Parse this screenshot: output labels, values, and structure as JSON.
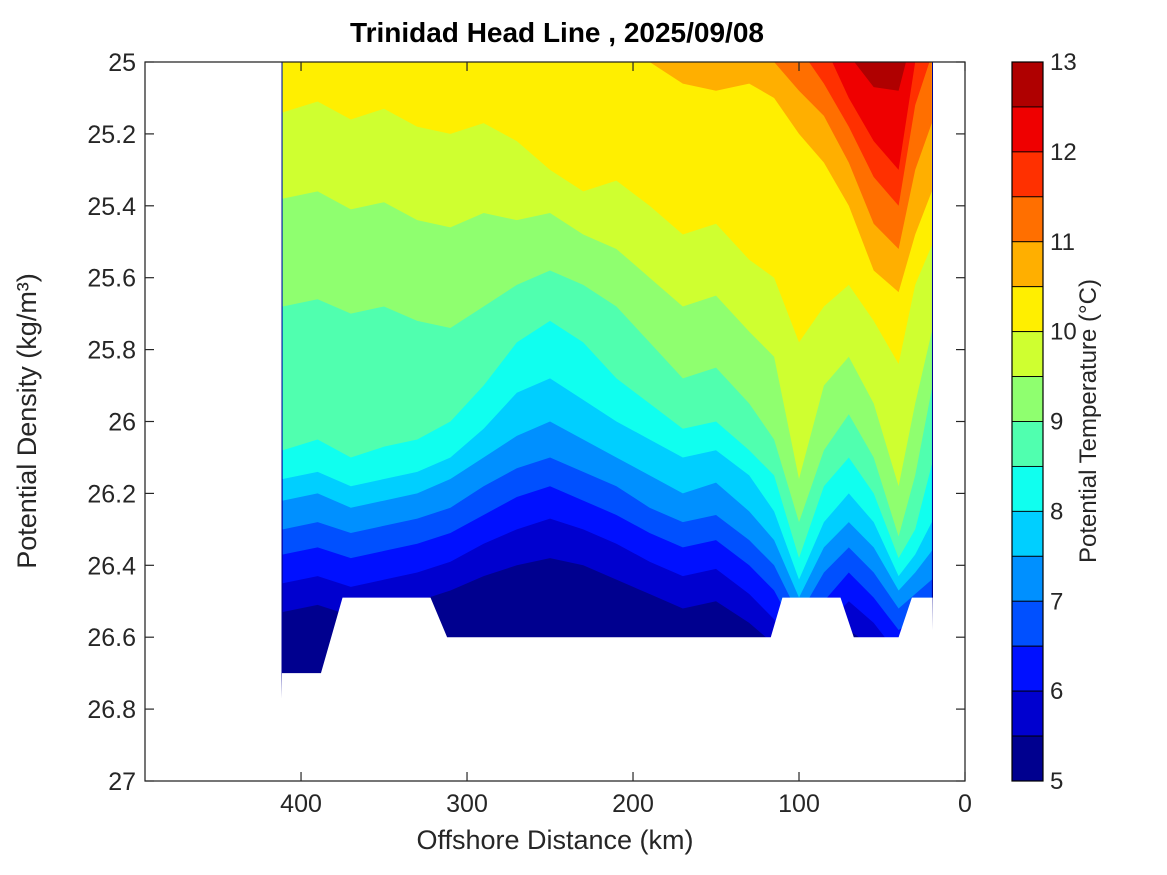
{
  "title": "Trinidad Head Line , 2025/09/08",
  "chart_data": {
    "type": "heatmap",
    "subtype": "filled-contour-section",
    "title": "Trinidad Head Line , 2025/09/08",
    "xlabel": "Offshore Distance (km)",
    "ylabel": "Potential Density (kg/m³)",
    "colorbar_label": "Potential Temperature (°C)",
    "x_axis_reversed": true,
    "y_axis_reversed": true,
    "xlim": [
      494,
      0
    ],
    "ylim": [
      25,
      27
    ],
    "x_ticks": [
      400,
      300,
      200,
      100,
      0
    ],
    "y_ticks": [
      25,
      25.2,
      25.4,
      25.6,
      25.8,
      26,
      26.2,
      26.4,
      26.6,
      26.8,
      27
    ],
    "grid": false,
    "legend_position": "colorbar-right",
    "temperature_levels": [
      5,
      5.5,
      6,
      6.5,
      7,
      7.5,
      8,
      8.5,
      9,
      9.5,
      10,
      10.5,
      11,
      11.5,
      12,
      12.5,
      13
    ],
    "level_colors": [
      "#00008F",
      "#0000CF",
      "#0010FF",
      "#0050FF",
      "#0090FF",
      "#00CFFF",
      "#10FFEF",
      "#50FFAF",
      "#8FFF6F",
      "#CFFF30",
      "#FFEF00",
      "#FFAF00",
      "#FF6F00",
      "#FF3000",
      "#EF0000",
      "#AF0000"
    ],
    "colorbar_ticks": [
      5,
      6,
      7,
      8,
      9,
      10,
      11,
      12,
      13
    ],
    "data_extent": {
      "distance_km": [
        411,
        20
      ],
      "density_top": 25.0,
      "density_deepest": 26.7
    },
    "distance_grid_km": [
      411,
      390,
      370,
      350,
      330,
      310,
      290,
      270,
      250,
      230,
      210,
      190,
      170,
      150,
      130,
      115,
      100,
      85,
      70,
      55,
      40,
      30,
      20
    ],
    "isotherm_density_note": "density (kg/m3) of each potential-temperature isoline along distance_grid_km; 24.9 = outcrops above surface (clipped at 25)",
    "isotherms": [
      {
        "temp": 5.5,
        "density": [
          26.53,
          26.51,
          26.54,
          26.52,
          26.5,
          26.47,
          26.43,
          26.4,
          26.38,
          26.4,
          26.44,
          26.48,
          26.52,
          26.5,
          26.56,
          26.62,
          26.73,
          26.64,
          26.58,
          26.63,
          26.72,
          26.7,
          26.68
        ]
      },
      {
        "temp": 6.0,
        "density": [
          26.45,
          26.43,
          26.46,
          26.44,
          26.42,
          26.39,
          26.34,
          26.3,
          26.27,
          26.3,
          26.34,
          26.39,
          26.43,
          26.41,
          26.48,
          26.55,
          26.67,
          26.57,
          26.5,
          26.56,
          26.65,
          26.62,
          26.6
        ]
      },
      {
        "temp": 6.5,
        "density": [
          26.37,
          26.35,
          26.38,
          26.36,
          26.34,
          26.31,
          26.26,
          26.21,
          26.18,
          26.22,
          26.26,
          26.31,
          26.35,
          26.33,
          26.4,
          26.47,
          26.6,
          26.5,
          26.42,
          26.49,
          26.58,
          26.55,
          26.52
        ]
      },
      {
        "temp": 7.0,
        "density": [
          26.3,
          26.28,
          26.31,
          26.29,
          26.27,
          26.24,
          26.18,
          26.13,
          26.1,
          26.14,
          26.18,
          26.24,
          26.28,
          26.26,
          26.33,
          26.4,
          26.54,
          26.42,
          26.35,
          26.42,
          26.52,
          26.48,
          26.44
        ]
      },
      {
        "temp": 7.5,
        "density": [
          26.22,
          26.2,
          26.24,
          26.22,
          26.2,
          26.16,
          26.1,
          26.04,
          26.0,
          26.05,
          26.1,
          26.15,
          26.2,
          26.17,
          26.25,
          26.33,
          26.49,
          26.35,
          26.28,
          26.35,
          26.47,
          26.42,
          26.36
        ]
      },
      {
        "temp": 8.0,
        "density": [
          26.16,
          26.14,
          26.18,
          26.16,
          26.14,
          26.1,
          26.02,
          25.92,
          25.88,
          25.94,
          26.0,
          26.05,
          26.1,
          26.08,
          26.15,
          26.25,
          26.44,
          26.28,
          26.2,
          26.28,
          26.43,
          26.37,
          26.28
        ]
      },
      {
        "temp": 8.5,
        "density": [
          26.08,
          26.05,
          26.1,
          26.07,
          26.05,
          26.0,
          25.9,
          25.78,
          25.72,
          25.78,
          25.88,
          25.95,
          26.02,
          26.0,
          26.08,
          26.15,
          26.38,
          26.18,
          26.1,
          26.2,
          26.38,
          26.3,
          26.12
        ]
      },
      {
        "temp": 9.0,
        "density": [
          25.68,
          25.66,
          25.7,
          25.68,
          25.72,
          25.74,
          25.68,
          25.62,
          25.58,
          25.62,
          25.68,
          25.78,
          25.88,
          25.85,
          25.95,
          26.05,
          26.28,
          26.08,
          25.98,
          26.1,
          26.32,
          26.15,
          25.91
        ]
      },
      {
        "temp": 9.5,
        "density": [
          25.38,
          25.36,
          25.41,
          25.39,
          25.44,
          25.46,
          25.42,
          25.44,
          25.42,
          25.48,
          25.52,
          25.6,
          25.68,
          25.65,
          25.75,
          25.82,
          26.16,
          25.9,
          25.82,
          25.95,
          26.18,
          25.95,
          25.75
        ]
      },
      {
        "temp": 10.0,
        "density": [
          25.14,
          25.11,
          25.16,
          25.13,
          25.18,
          25.2,
          25.17,
          25.22,
          25.3,
          25.36,
          25.33,
          25.4,
          25.48,
          25.45,
          25.55,
          25.6,
          25.78,
          25.68,
          25.62,
          25.72,
          25.84,
          25.62,
          25.51
        ]
      },
      {
        "temp": 10.5,
        "density": [
          24.9,
          24.9,
          24.9,
          24.9,
          24.9,
          24.9,
          24.9,
          24.9,
          24.9,
          24.9,
          24.92,
          25.0,
          25.06,
          25.08,
          25.06,
          25.1,
          25.2,
          25.28,
          25.4,
          25.58,
          25.64,
          25.48,
          25.36
        ]
      },
      {
        "temp": 11.0,
        "density": [
          24.9,
          24.9,
          24.9,
          24.9,
          24.9,
          24.9,
          24.9,
          24.9,
          24.9,
          24.9,
          24.9,
          24.92,
          24.96,
          24.98,
          24.96,
          25.0,
          25.08,
          25.15,
          25.28,
          25.45,
          25.52,
          25.3,
          25.17
        ]
      },
      {
        "temp": 11.5,
        "density": [
          24.9,
          24.9,
          24.9,
          24.9,
          24.9,
          24.9,
          24.9,
          24.9,
          24.9,
          24.9,
          24.9,
          24.9,
          24.9,
          24.9,
          24.9,
          24.9,
          24.96,
          25.06,
          25.18,
          25.32,
          25.4,
          25.12,
          24.98
        ]
      },
      {
        "temp": 12.0,
        "density": [
          24.9,
          24.9,
          24.9,
          24.9,
          24.9,
          24.9,
          24.9,
          24.9,
          24.9,
          24.9,
          24.9,
          24.9,
          24.9,
          24.9,
          24.9,
          24.9,
          24.9,
          24.95,
          25.1,
          25.22,
          25.3,
          25.0,
          24.92
        ]
      },
      {
        "temp": 12.5,
        "density": [
          24.9,
          24.9,
          24.9,
          24.9,
          24.9,
          24.9,
          24.9,
          24.9,
          24.9,
          24.9,
          24.9,
          24.9,
          24.9,
          24.9,
          24.9,
          24.9,
          24.9,
          24.9,
          24.98,
          25.07,
          25.08,
          24.9,
          24.9
        ]
      }
    ],
    "bottom_boundary": [
      [
        411.5,
        26.7
      ],
      [
        388,
        26.7
      ],
      [
        375,
        26.49
      ],
      [
        322,
        26.49
      ],
      [
        312,
        26.6
      ],
      [
        117,
        26.6
      ],
      [
        110,
        26.49
      ],
      [
        75,
        26.49
      ],
      [
        67,
        26.6
      ],
      [
        40,
        26.6
      ],
      [
        32,
        26.49
      ],
      [
        19.5,
        26.49
      ]
    ]
  }
}
